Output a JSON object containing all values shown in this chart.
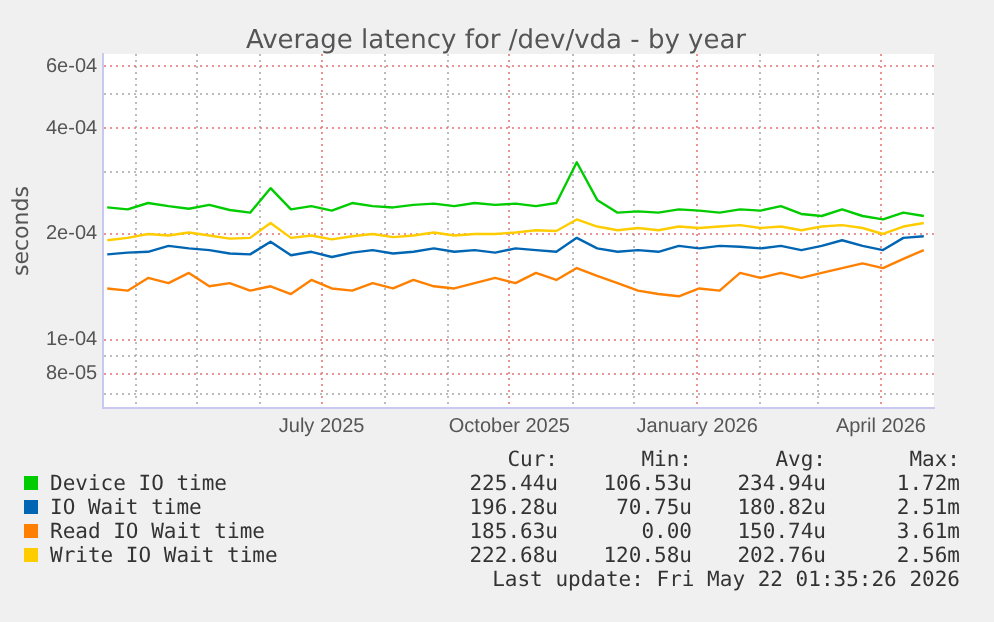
{
  "chart_data": {
    "type": "line",
    "title": "Average latency for /dev/vda - by year",
    "ylabel": "seconds",
    "log": "y",
    "grid": true,
    "legend": "bottom",
    "marker": "none",
    "line_style": "solid",
    "x": [
      "2025-03-18",
      "2025-03-28",
      "2025-04-07",
      "2025-04-17",
      "2025-04-27",
      "2025-05-07",
      "2025-05-17",
      "2025-05-27",
      "2025-06-06",
      "2025-06-16",
      "2025-06-26",
      "2025-07-06",
      "2025-07-16",
      "2025-07-26",
      "2025-08-05",
      "2025-08-15",
      "2025-08-25",
      "2025-09-04",
      "2025-09-14",
      "2025-09-24",
      "2025-10-04",
      "2025-10-14",
      "2025-10-24",
      "2025-11-03",
      "2025-11-13",
      "2025-11-23",
      "2025-12-03",
      "2025-12-13",
      "2025-12-23",
      "2026-01-02",
      "2026-01-12",
      "2026-01-22",
      "2026-02-01",
      "2026-02-11",
      "2026-02-21",
      "2026-03-03",
      "2026-03-13",
      "2026-03-23",
      "2026-04-02",
      "2026-04-12",
      "2026-04-22"
    ],
    "xlim": [
      "2025-03-16",
      "2026-04-27"
    ],
    "xticks": [
      {
        "value": "2025-04-01",
        "label": null
      },
      {
        "value": "2025-05-01",
        "label": null
      },
      {
        "value": "2025-06-01",
        "label": null
      },
      {
        "value": "2025-07-01",
        "label": "July 2025"
      },
      {
        "value": "2025-08-01",
        "label": null
      },
      {
        "value": "2025-09-01",
        "label": null
      },
      {
        "value": "2025-10-01",
        "label": "October 2025"
      },
      {
        "value": "2025-11-01",
        "label": null
      },
      {
        "value": "2025-12-01",
        "label": null
      },
      {
        "value": "2026-01-01",
        "label": "January 2026"
      },
      {
        "value": "2026-02-01",
        "label": null
      },
      {
        "value": "2026-03-01",
        "label": null
      },
      {
        "value": "2026-04-01",
        "label": "April 2026"
      }
    ],
    "ylim": [
      6.4e-05,
      0.00065
    ],
    "yticks": [
      {
        "value": 7e-05,
        "label": null
      },
      {
        "value": 8e-05,
        "label": "8e-05"
      },
      {
        "value": 9e-05,
        "label": null
      },
      {
        "value": 0.0001,
        "label": "1e-04"
      },
      {
        "value": 0.0002,
        "label": "2e-04"
      },
      {
        "value": 0.0003,
        "label": null
      },
      {
        "value": 0.0004,
        "label": "4e-04"
      },
      {
        "value": 0.0005,
        "label": null
      },
      {
        "value": 0.0006,
        "label": "6e-04"
      }
    ],
    "series": [
      {
        "name": "Device IO time",
        "color": "#00cc00",
        "values": [
          0.000238,
          0.000235,
          0.000245,
          0.00024,
          0.000236,
          0.000242,
          0.000234,
          0.00023,
          0.00027,
          0.000235,
          0.00024,
          0.000233,
          0.000245,
          0.00024,
          0.000238,
          0.000242,
          0.000244,
          0.00024,
          0.000245,
          0.000242,
          0.000244,
          0.00024,
          0.000245,
          0.00032,
          0.00025,
          0.00023,
          0.000232,
          0.00023,
          0.000235,
          0.000233,
          0.00023,
          0.000235,
          0.000233,
          0.00024,
          0.000228,
          0.000225,
          0.000235,
          0.000225,
          0.00022,
          0.00023,
          0.000225
        ]
      },
      {
        "name": "IO Wait time",
        "color": "#0066b3",
        "values": [
          0.000175,
          0.000177,
          0.000178,
          0.000185,
          0.000182,
          0.00018,
          0.000176,
          0.000175,
          0.00019,
          0.000174,
          0.000178,
          0.000172,
          0.000177,
          0.00018,
          0.000176,
          0.000178,
          0.000182,
          0.000178,
          0.00018,
          0.000177,
          0.000182,
          0.00018,
          0.000178,
          0.000195,
          0.000182,
          0.000178,
          0.00018,
          0.000178,
          0.000185,
          0.000182,
          0.000185,
          0.000184,
          0.000182,
          0.000185,
          0.00018,
          0.000185,
          0.000192,
          0.000185,
          0.00018,
          0.000195,
          0.000197
        ]
      },
      {
        "name": "Read IO Wait time",
        "color": "#ff8000",
        "values": [
          0.00014,
          0.000138,
          0.00015,
          0.000145,
          0.000155,
          0.000142,
          0.000145,
          0.000138,
          0.000142,
          0.000135,
          0.000148,
          0.00014,
          0.000138,
          0.000145,
          0.00014,
          0.000148,
          0.000142,
          0.00014,
          0.000145,
          0.00015,
          0.000145,
          0.000155,
          0.000148,
          0.00016,
          0.000152,
          0.000145,
          0.000138,
          0.000135,
          0.000133,
          0.00014,
          0.000138,
          0.000155,
          0.00015,
          0.000155,
          0.00015,
          0.000155,
          0.00016,
          0.000165,
          0.00016,
          0.00017,
          0.00018
        ]
      },
      {
        "name": "Write IO Wait time",
        "color": "#ffcc00",
        "values": [
          0.000192,
          0.000195,
          0.0002,
          0.000198,
          0.000202,
          0.000198,
          0.000194,
          0.000195,
          0.000215,
          0.000195,
          0.000198,
          0.000193,
          0.000197,
          0.0002,
          0.000196,
          0.000198,
          0.000202,
          0.000198,
          0.0002,
          0.0002,
          0.000202,
          0.000205,
          0.000204,
          0.00022,
          0.00021,
          0.000205,
          0.000208,
          0.000205,
          0.00021,
          0.000208,
          0.00021,
          0.000212,
          0.000208,
          0.00021,
          0.000205,
          0.00021,
          0.000212,
          0.000208,
          0.0002,
          0.00021,
          0.000215
        ]
      }
    ],
    "annotations": [
      "Cur:",
      "Min:",
      "Avg:",
      "Max:",
      "225.44u",
      "106.53u",
      "234.94u",
      "1.72m",
      "196.28u",
      "70.75u",
      "180.82u",
      "2.51m",
      "185.63u",
      "0.00",
      "150.74u",
      "3.61m",
      "222.68u",
      "120.58u",
      "202.76u",
      "2.56m",
      "Last update: Fri May 22 01:35:26 2026"
    ]
  }
}
